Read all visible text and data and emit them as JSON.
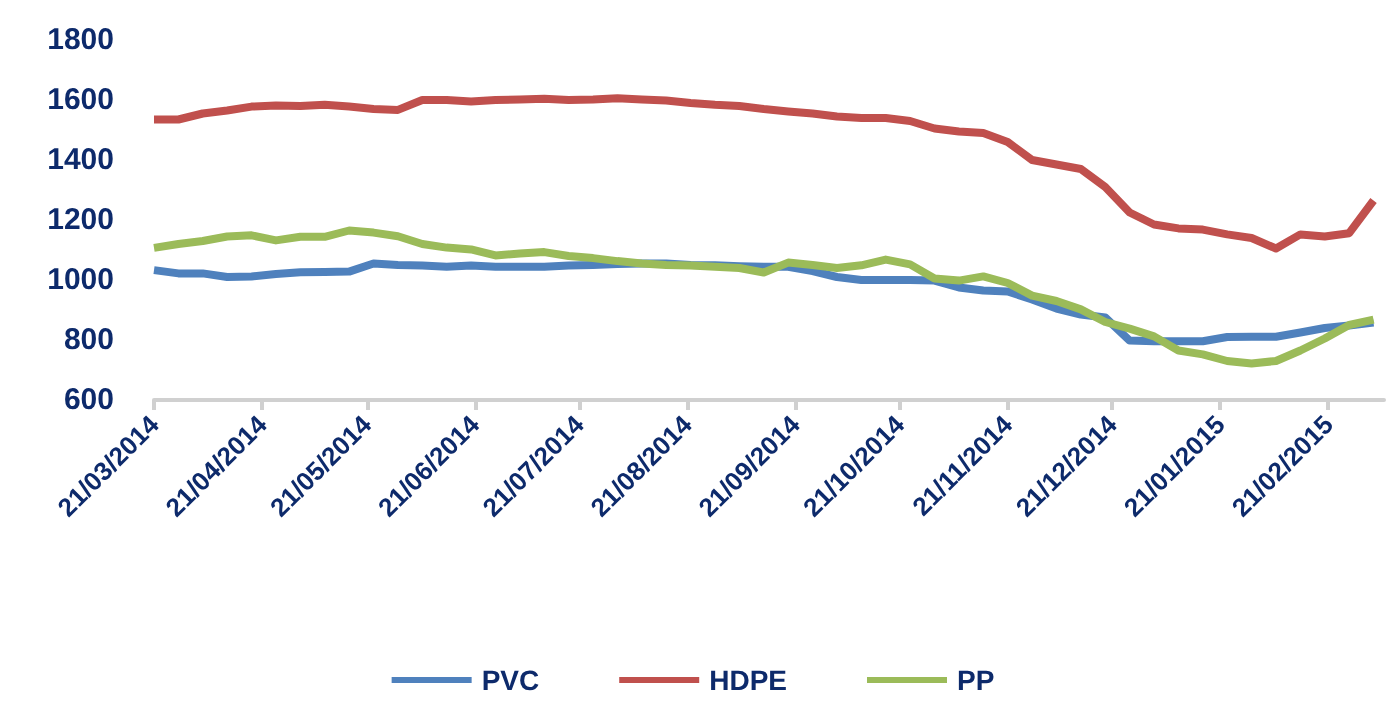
{
  "chart_data": {
    "type": "line",
    "x": [
      "2014-03-21",
      "2014-03-28",
      "2014-04-04",
      "2014-04-11",
      "2014-04-18",
      "2014-04-25",
      "2014-05-02",
      "2014-05-09",
      "2014-05-16",
      "2014-05-23",
      "2014-05-30",
      "2014-06-06",
      "2014-06-13",
      "2014-06-20",
      "2014-06-27",
      "2014-07-04",
      "2014-07-11",
      "2014-07-18",
      "2014-07-25",
      "2014-08-01",
      "2014-08-08",
      "2014-08-15",
      "2014-08-22",
      "2014-08-29",
      "2014-09-05",
      "2014-09-12",
      "2014-09-19",
      "2014-09-26",
      "2014-10-03",
      "2014-10-10",
      "2014-10-17",
      "2014-10-24",
      "2014-10-31",
      "2014-11-07",
      "2014-11-14",
      "2014-11-21",
      "2014-11-28",
      "2014-12-05",
      "2014-12-12",
      "2014-12-19",
      "2014-12-26",
      "2015-01-02",
      "2015-01-09",
      "2015-01-16",
      "2015-01-23",
      "2015-01-30",
      "2015-02-06",
      "2015-02-13",
      "2015-02-20",
      "2015-02-27",
      "2015-03-06"
    ],
    "series": [
      {
        "name": "PVC",
        "color": "#4f81bd",
        "values": [
          1033,
          1022,
          1022,
          1010,
          1012,
          1020,
          1026,
          1027,
          1028,
          1055,
          1050,
          1048,
          1044,
          1048,
          1044,
          1044,
          1044,
          1048,
          1050,
          1053,
          1055,
          1055,
          1050,
          1049,
          1046,
          1044,
          1044,
          1030,
          1010,
          1000,
          1000,
          1000,
          998,
          975,
          965,
          962,
          935,
          905,
          885,
          875,
          798,
          796,
          796,
          796,
          810,
          811,
          811,
          825,
          840,
          848,
          858
        ]
      },
      {
        "name": "HDPE",
        "color": "#c0504d",
        "values": [
          1535,
          1535,
          1555,
          1565,
          1578,
          1582,
          1580,
          1584,
          1578,
          1570,
          1567,
          1600,
          1600,
          1595,
          1600,
          1602,
          1604,
          1600,
          1602,
          1606,
          1602,
          1598,
          1590,
          1584,
          1580,
          1570,
          1562,
          1555,
          1545,
          1540,
          1540,
          1530,
          1505,
          1495,
          1490,
          1460,
          1400,
          1385,
          1370,
          1310,
          1225,
          1185,
          1172,
          1168,
          1152,
          1140,
          1105,
          1152,
          1145,
          1156,
          1265
        ]
      },
      {
        "name": "PP",
        "color": "#9bbb59",
        "values": [
          1107,
          1120,
          1130,
          1145,
          1149,
          1132,
          1144,
          1144,
          1165,
          1158,
          1146,
          1120,
          1108,
          1102,
          1082,
          1088,
          1093,
          1080,
          1073,
          1063,
          1055,
          1050,
          1048,
          1044,
          1040,
          1025,
          1058,
          1050,
          1040,
          1049,
          1068,
          1052,
          1005,
          998,
          1012,
          990,
          948,
          930,
          902,
          860,
          838,
          812,
          765,
          752,
          730,
          722,
          730,
          765,
          805,
          850,
          868
        ]
      }
    ],
    "xlim": [
      "2014-03-21",
      "2015-03-09"
    ],
    "xticks": [
      {
        "value": "2014-03-21",
        "label": "21/03/2014"
      },
      {
        "value": "2014-04-21",
        "label": "21/04/2014"
      },
      {
        "value": "2014-05-21",
        "label": "21/05/2014"
      },
      {
        "value": "2014-06-21",
        "label": "21/06/2014"
      },
      {
        "value": "2014-07-21",
        "label": "21/07/2014"
      },
      {
        "value": "2014-08-21",
        "label": "21/08/2014"
      },
      {
        "value": "2014-09-21",
        "label": "21/09/2014"
      },
      {
        "value": "2014-10-21",
        "label": "21/10/2014"
      },
      {
        "value": "2014-11-21",
        "label": "21/11/2014"
      },
      {
        "value": "2014-12-21",
        "label": "21/12/2014"
      },
      {
        "value": "2015-01-21",
        "label": "21/01/2015"
      },
      {
        "value": "2015-02-21",
        "label": "21/02/2015"
      }
    ],
    "ylim": [
      600,
      1800
    ],
    "yticks": [
      600,
      800,
      1000,
      1200,
      1400,
      1600,
      1800
    ],
    "grid": false,
    "legend": "bottom",
    "marker": "none"
  }
}
